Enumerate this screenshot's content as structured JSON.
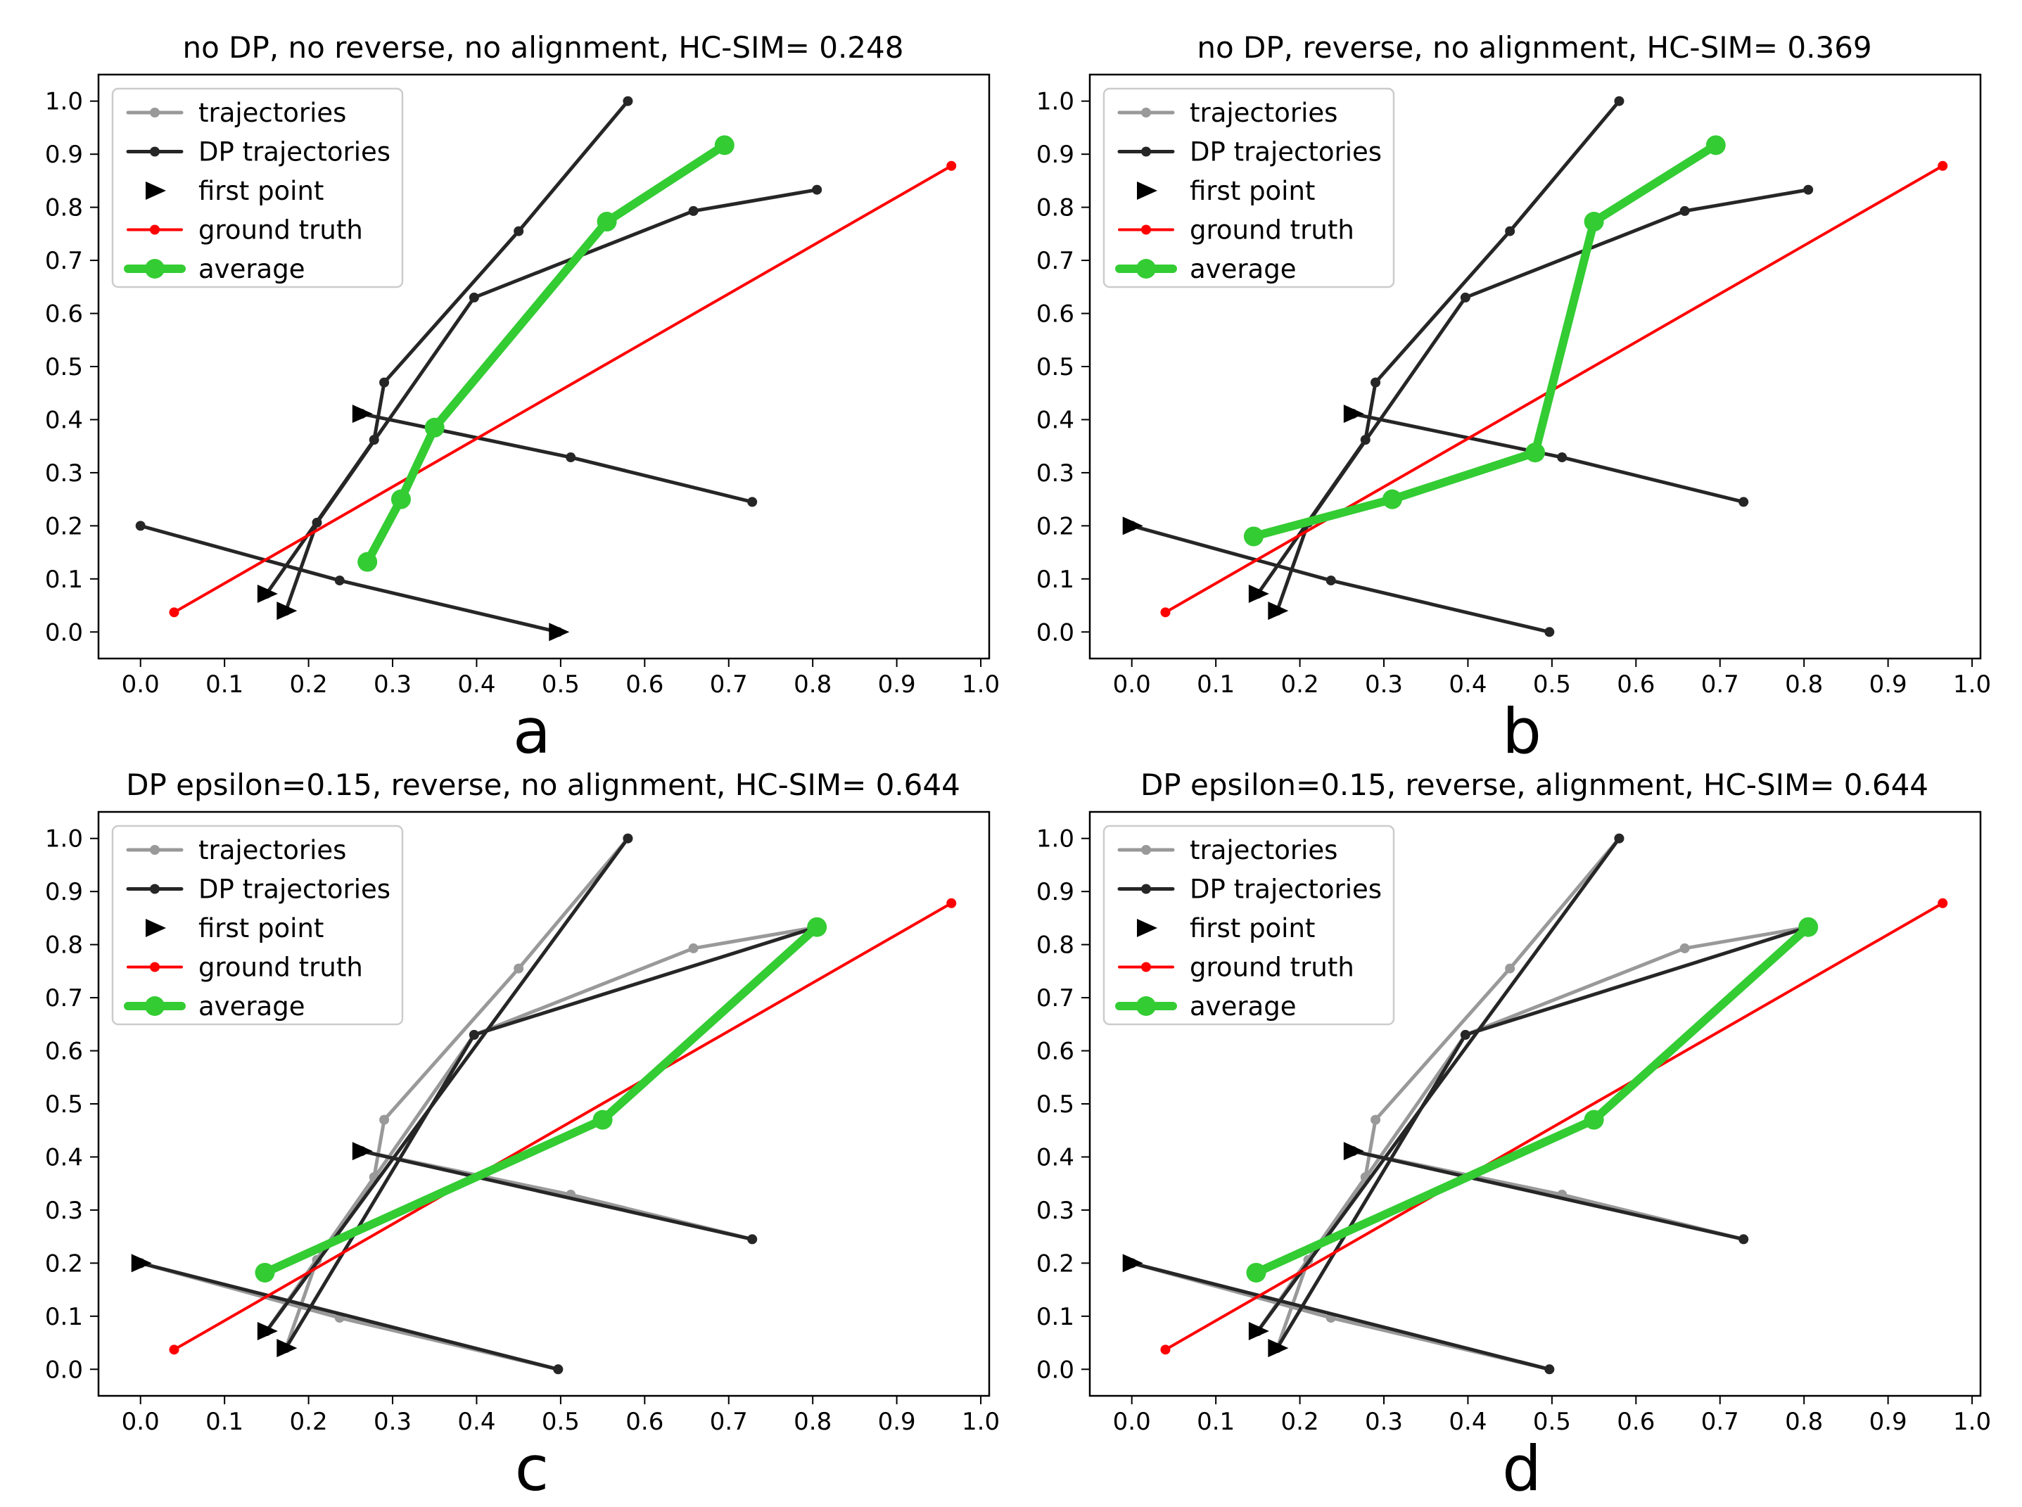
{
  "colors": {
    "trajectories": "#999999",
    "dp_trajectories": "#262626",
    "first_point": "#000000",
    "ground_truth": "#ff0000",
    "average": "#33cc33",
    "axes": "#000000"
  },
  "chart_data": [
    {
      "type": "line",
      "panel_label": "a",
      "title": "no DP, no reverse, no alignment, HC-SIM= 0.248",
      "xlabel": "",
      "ylabel": "",
      "xlim": [
        -0.05,
        1.01
      ],
      "ylim": [
        -0.05,
        1.05
      ],
      "xticks": [
        "0.0",
        "0.1",
        "0.2",
        "0.3",
        "0.4",
        "0.5",
        "0.6",
        "0.7",
        "0.8",
        "0.9",
        "1.0"
      ],
      "yticks": [
        "0.0",
        "0.1",
        "0.2",
        "0.3",
        "0.4",
        "0.5",
        "0.6",
        "0.7",
        "0.8",
        "0.9",
        "1.0"
      ],
      "legend": {
        "location": "upper-left",
        "entries": [
          "trajectories",
          "DP trajectories",
          "first point",
          "ground truth",
          "average"
        ]
      },
      "series": [
        {
          "name": "trajectories",
          "role": "raw",
          "points": []
        },
        {
          "name": "DP trajectory 1",
          "role": "dp",
          "points": [
            [
              0.58,
              1.0
            ],
            [
              0.45,
              0.755
            ],
            [
              0.29,
              0.47
            ],
            [
              0.278,
              0.362
            ],
            [
              0.15,
              0.072
            ]
          ]
        },
        {
          "name": "DP trajectory 2",
          "role": "dp",
          "points": [
            [
              0.805,
              0.833
            ],
            [
              0.658,
              0.793
            ],
            [
              0.397,
              0.63
            ],
            [
              0.21,
              0.206
            ],
            [
              0.173,
              0.04
            ]
          ]
        },
        {
          "name": "DP trajectory 3",
          "role": "dp",
          "points": [
            [
              0.263,
              0.411
            ],
            [
              0.512,
              0.329
            ],
            [
              0.728,
              0.245
            ]
          ]
        },
        {
          "name": "DP trajectory 4",
          "role": "dp",
          "points": [
            [
              0.0,
              0.2
            ],
            [
              0.237,
              0.097
            ],
            [
              0.497,
              0.0
            ]
          ]
        },
        {
          "name": "first point",
          "role": "first",
          "points": [
            [
              0.15,
              0.072
            ],
            [
              0.173,
              0.04
            ],
            [
              0.263,
              0.411
            ],
            [
              0.497,
              0.0
            ]
          ]
        },
        {
          "name": "ground truth",
          "role": "truth",
          "points": [
            [
              0.04,
              0.037
            ],
            [
              0.965,
              0.878
            ]
          ]
        },
        {
          "name": "average",
          "role": "average",
          "points": [
            [
              0.27,
              0.132
            ],
            [
              0.31,
              0.25
            ],
            [
              0.35,
              0.385
            ],
            [
              0.555,
              0.773
            ],
            [
              0.695,
              0.917
            ]
          ]
        }
      ]
    },
    {
      "type": "line",
      "panel_label": "b",
      "title": "no DP, reverse, no alignment, HC-SIM= 0.369",
      "xlabel": "",
      "ylabel": "",
      "xlim": [
        -0.05,
        1.01
      ],
      "ylim": [
        -0.05,
        1.05
      ],
      "xticks": [
        "0.0",
        "0.1",
        "0.2",
        "0.3",
        "0.4",
        "0.5",
        "0.6",
        "0.7",
        "0.8",
        "0.9",
        "1.0"
      ],
      "yticks": [
        "0.0",
        "0.1",
        "0.2",
        "0.3",
        "0.4",
        "0.5",
        "0.6",
        "0.7",
        "0.8",
        "0.9",
        "1.0"
      ],
      "legend": {
        "location": "upper-left",
        "entries": [
          "trajectories",
          "DP trajectories",
          "first point",
          "ground truth",
          "average"
        ]
      },
      "series": [
        {
          "name": "trajectories",
          "role": "raw",
          "points": []
        },
        {
          "name": "DP trajectory 1",
          "role": "dp",
          "points": [
            [
              0.58,
              1.0
            ],
            [
              0.45,
              0.755
            ],
            [
              0.29,
              0.47
            ],
            [
              0.278,
              0.362
            ],
            [
              0.15,
              0.072
            ]
          ]
        },
        {
          "name": "DP trajectory 2",
          "role": "dp",
          "points": [
            [
              0.805,
              0.833
            ],
            [
              0.658,
              0.793
            ],
            [
              0.397,
              0.63
            ],
            [
              0.21,
              0.206
            ],
            [
              0.173,
              0.04
            ]
          ]
        },
        {
          "name": "DP trajectory 3",
          "role": "dp",
          "points": [
            [
              0.263,
              0.411
            ],
            [
              0.512,
              0.329
            ],
            [
              0.728,
              0.245
            ]
          ]
        },
        {
          "name": "DP trajectory 4",
          "role": "dp",
          "points": [
            [
              0.0,
              0.2
            ],
            [
              0.237,
              0.097
            ],
            [
              0.497,
              0.0
            ]
          ]
        },
        {
          "name": "first point",
          "role": "first",
          "points": [
            [
              0.15,
              0.072
            ],
            [
              0.173,
              0.04
            ],
            [
              0.263,
              0.411
            ],
            [
              0.0,
              0.2
            ]
          ]
        },
        {
          "name": "ground truth",
          "role": "truth",
          "points": [
            [
              0.04,
              0.037
            ],
            [
              0.965,
              0.878
            ]
          ]
        },
        {
          "name": "average",
          "role": "average",
          "points": [
            [
              0.145,
              0.18
            ],
            [
              0.31,
              0.25
            ],
            [
              0.48,
              0.338
            ],
            [
              0.55,
              0.773
            ],
            [
              0.695,
              0.917
            ]
          ]
        }
      ]
    },
    {
      "type": "line",
      "panel_label": "c",
      "title": "DP epsilon=0.15, reverse, no alignment, HC-SIM= 0.644",
      "xlabel": "",
      "ylabel": "",
      "xlim": [
        -0.05,
        1.01
      ],
      "ylim": [
        -0.05,
        1.05
      ],
      "xticks": [
        "0.0",
        "0.1",
        "0.2",
        "0.3",
        "0.4",
        "0.5",
        "0.6",
        "0.7",
        "0.8",
        "0.9",
        "1.0"
      ],
      "yticks": [
        "0.0",
        "0.1",
        "0.2",
        "0.3",
        "0.4",
        "0.5",
        "0.6",
        "0.7",
        "0.8",
        "0.9",
        "1.0"
      ],
      "legend": {
        "location": "upper-left",
        "entries": [
          "trajectories",
          "DP trajectories",
          "first point",
          "ground truth",
          "average"
        ]
      },
      "series": [
        {
          "name": "raw trajectory 1",
          "role": "raw",
          "points": [
            [
              0.58,
              1.0
            ],
            [
              0.45,
              0.755
            ],
            [
              0.29,
              0.47
            ],
            [
              0.278,
              0.362
            ],
            [
              0.15,
              0.072
            ]
          ]
        },
        {
          "name": "raw trajectory 2",
          "role": "raw",
          "points": [
            [
              0.805,
              0.833
            ],
            [
              0.658,
              0.793
            ],
            [
              0.397,
              0.63
            ],
            [
              0.21,
              0.206
            ],
            [
              0.173,
              0.04
            ]
          ]
        },
        {
          "name": "raw trajectory 3",
          "role": "raw",
          "points": [
            [
              0.263,
              0.411
            ],
            [
              0.512,
              0.329
            ],
            [
              0.728,
              0.245
            ]
          ]
        },
        {
          "name": "raw trajectory 4",
          "role": "raw",
          "points": [
            [
              0.0,
              0.2
            ],
            [
              0.237,
              0.097
            ],
            [
              0.497,
              0.0
            ]
          ]
        },
        {
          "name": "DP trajectory 1",
          "role": "dp",
          "points": [
            [
              0.58,
              1.0
            ],
            [
              0.15,
              0.072
            ]
          ]
        },
        {
          "name": "DP trajectory 2",
          "role": "dp",
          "points": [
            [
              0.805,
              0.833
            ],
            [
              0.397,
              0.63
            ],
            [
              0.173,
              0.04
            ]
          ]
        },
        {
          "name": "DP trajectory 3",
          "role": "dp",
          "points": [
            [
              0.263,
              0.411
            ],
            [
              0.728,
              0.245
            ]
          ]
        },
        {
          "name": "DP trajectory 4",
          "role": "dp",
          "points": [
            [
              0.0,
              0.2
            ],
            [
              0.497,
              0.0
            ]
          ]
        },
        {
          "name": "first point",
          "role": "first",
          "points": [
            [
              0.15,
              0.072
            ],
            [
              0.173,
              0.04
            ],
            [
              0.263,
              0.411
            ],
            [
              0.0,
              0.2
            ]
          ]
        },
        {
          "name": "ground truth",
          "role": "truth",
          "points": [
            [
              0.04,
              0.037
            ],
            [
              0.965,
              0.878
            ]
          ]
        },
        {
          "name": "average",
          "role": "average",
          "points": [
            [
              0.148,
              0.182
            ],
            [
              0.55,
              0.47
            ],
            [
              0.805,
              0.833
            ]
          ]
        }
      ]
    },
    {
      "type": "line",
      "panel_label": "d",
      "title": "DP epsilon=0.15, reverse, alignment, HC-SIM= 0.644",
      "xlabel": "",
      "ylabel": "",
      "xlim": [
        -0.05,
        1.01
      ],
      "ylim": [
        -0.05,
        1.05
      ],
      "xticks": [
        "0.0",
        "0.1",
        "0.2",
        "0.3",
        "0.4",
        "0.5",
        "0.6",
        "0.7",
        "0.8",
        "0.9",
        "1.0"
      ],
      "yticks": [
        "0.0",
        "0.1",
        "0.2",
        "0.3",
        "0.4",
        "0.5",
        "0.6",
        "0.7",
        "0.8",
        "0.9",
        "1.0"
      ],
      "legend": {
        "location": "upper-left",
        "entries": [
          "trajectories",
          "DP trajectories",
          "first point",
          "ground truth",
          "average"
        ]
      },
      "series": [
        {
          "name": "raw trajectory 1",
          "role": "raw",
          "points": [
            [
              0.58,
              1.0
            ],
            [
              0.45,
              0.755
            ],
            [
              0.29,
              0.47
            ],
            [
              0.278,
              0.362
            ],
            [
              0.15,
              0.072
            ]
          ]
        },
        {
          "name": "raw trajectory 2",
          "role": "raw",
          "points": [
            [
              0.805,
              0.833
            ],
            [
              0.658,
              0.793
            ],
            [
              0.397,
              0.63
            ],
            [
              0.21,
              0.206
            ],
            [
              0.173,
              0.04
            ]
          ]
        },
        {
          "name": "raw trajectory 3",
          "role": "raw",
          "points": [
            [
              0.263,
              0.411
            ],
            [
              0.512,
              0.329
            ],
            [
              0.728,
              0.245
            ]
          ]
        },
        {
          "name": "raw trajectory 4",
          "role": "raw",
          "points": [
            [
              0.0,
              0.2
            ],
            [
              0.237,
              0.097
            ],
            [
              0.497,
              0.0
            ]
          ]
        },
        {
          "name": "DP trajectory 1",
          "role": "dp",
          "points": [
            [
              0.58,
              1.0
            ],
            [
              0.15,
              0.072
            ]
          ]
        },
        {
          "name": "DP trajectory 2",
          "role": "dp",
          "points": [
            [
              0.805,
              0.833
            ],
            [
              0.397,
              0.63
            ],
            [
              0.173,
              0.04
            ]
          ]
        },
        {
          "name": "DP trajectory 3",
          "role": "dp",
          "points": [
            [
              0.263,
              0.411
            ],
            [
              0.728,
              0.245
            ]
          ]
        },
        {
          "name": "DP trajectory 4",
          "role": "dp",
          "points": [
            [
              0.0,
              0.2
            ],
            [
              0.497,
              0.0
            ]
          ]
        },
        {
          "name": "first point",
          "role": "first",
          "points": [
            [
              0.15,
              0.072
            ],
            [
              0.173,
              0.04
            ],
            [
              0.263,
              0.411
            ],
            [
              0.0,
              0.2
            ]
          ]
        },
        {
          "name": "ground truth",
          "role": "truth",
          "points": [
            [
              0.04,
              0.037
            ],
            [
              0.965,
              0.878
            ]
          ]
        },
        {
          "name": "average",
          "role": "average",
          "points": [
            [
              0.148,
              0.182
            ],
            [
              0.55,
              0.47
            ],
            [
              0.805,
              0.833
            ]
          ]
        }
      ]
    }
  ]
}
